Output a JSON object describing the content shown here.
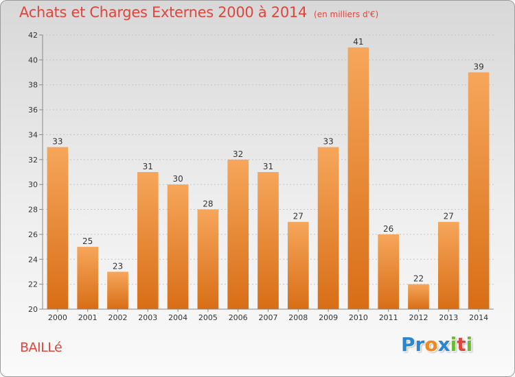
{
  "header": {
    "title": "Achats et Charges Externes 2000 à 2014",
    "unit": "(en milliers d'€)"
  },
  "footer": {
    "commune": "BAILLé",
    "brand_letters": [
      {
        "char": "P",
        "color": "#2a86d3"
      },
      {
        "char": "r",
        "color": "#2a86d3"
      },
      {
        "char": "o",
        "color": "#f08a1c"
      },
      {
        "char": "x",
        "color": "#2a86d3"
      },
      {
        "char": "i",
        "color": "#6cbd2c"
      },
      {
        "char": "t",
        "color": "#e0453c"
      },
      {
        "char": "i",
        "color": "#6cbd2c"
      }
    ]
  },
  "colors": {
    "bar_top": "#f6a65b",
    "bar_bottom": "#d86e16",
    "axis": "#888888",
    "grid": "#c4c4c4"
  },
  "chart_data": {
    "type": "bar",
    "title": "Achats et Charges Externes 2000 à 2014",
    "categories": [
      "2000",
      "2001",
      "2002",
      "2003",
      "2004",
      "2005",
      "2006",
      "2007",
      "2008",
      "2009",
      "2010",
      "2011",
      "2012",
      "2013",
      "2014"
    ],
    "values": [
      33,
      25,
      23,
      31,
      30,
      28,
      32,
      31,
      27,
      33,
      41,
      26,
      22,
      27,
      39
    ],
    "ylim": [
      20,
      42
    ],
    "yticks": [
      20,
      22,
      24,
      26,
      28,
      30,
      32,
      34,
      36,
      38,
      40,
      42
    ],
    "grid": true,
    "data_labels": true
  }
}
